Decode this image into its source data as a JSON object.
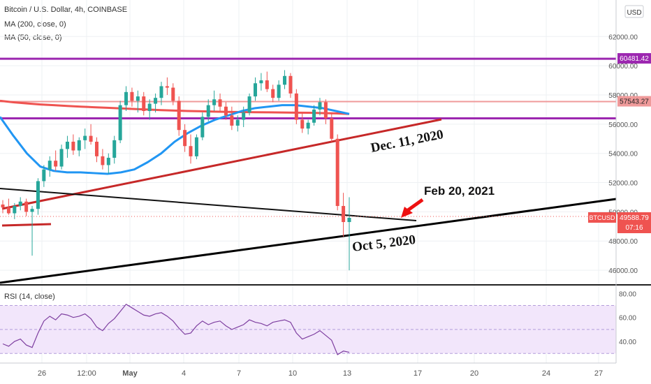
{
  "chart_data": {
    "type": "candlestick",
    "title": "Bitcoin / U.S. Dollar, 4h, COINBASE",
    "currency_label": "USD",
    "symbol": "BTCUSD",
    "last_price": "49588.79",
    "countdown": "07:16",
    "grid": true,
    "ylim": [
      45000,
      64500
    ],
    "y_ticks": [
      "46000.00",
      "48000.00",
      "50000.00",
      "52000.00",
      "54000.00",
      "56000.00",
      "58000.00",
      "60000.00",
      "62000.00"
    ],
    "price_labels": [
      {
        "text": "60481.42",
        "value": 60481.42,
        "color": "#9c27b0"
      },
      {
        "text": "57543.27",
        "value": 57543.27,
        "color": "#ef9a9a"
      },
      {
        "text": "49588.79",
        "value": 49588.79,
        "color": "#ef5350"
      }
    ],
    "x_ticks": [
      "26",
      "12:00",
      "May",
      "4",
      "7",
      "10",
      "13",
      "17",
      "20",
      "24",
      "27"
    ],
    "indicators": [
      {
        "label": "MA (200, close, 0)",
        "color": "#ef5350",
        "values": [
          57600,
          57500,
          57420,
          57350,
          57300,
          57250,
          57200,
          57160,
          57120,
          57080,
          57040,
          57000,
          56960,
          56930,
          56900,
          56880,
          56860,
          56840,
          56830,
          56820,
          56810,
          56800,
          56790,
          56780,
          56760,
          56740,
          56700
        ]
      },
      {
        "label": "MA (50, close, 0)",
        "color": "#2196f3",
        "values": [
          56500,
          55200,
          54000,
          53100,
          52800,
          52700,
          52700,
          52650,
          52600,
          52700,
          52900,
          53400,
          54000,
          54800,
          55400,
          55900,
          56300,
          56600,
          56900,
          57100,
          57200,
          57300,
          57300,
          57200,
          57100,
          56900,
          56700
        ]
      }
    ],
    "horizontal_levels": [
      {
        "value": 60481.42,
        "color": "#9c27b0"
      },
      {
        "value": 57543.27,
        "color": "#ef9a9a"
      },
      {
        "value": 56400,
        "color": "#9c27b0"
      }
    ],
    "annotations": [
      "Dec. 11, 2020",
      "Feb 20, 2021",
      "Oct 5, 2020"
    ],
    "candles": [
      [
        50500,
        50800,
        49900,
        50300
      ],
      [
        50300,
        50900,
        49800,
        49900
      ],
      [
        49900,
        50600,
        49500,
        50400
      ],
      [
        50400,
        51000,
        50100,
        50700
      ],
      [
        50700,
        50900,
        49700,
        50000
      ],
      [
        50000,
        50400,
        47000,
        50200
      ],
      [
        50200,
        52300,
        49800,
        52100
      ],
      [
        52100,
        53200,
        51700,
        52900
      ],
      [
        52900,
        53800,
        52400,
        53500
      ],
      [
        53500,
        54200,
        52800,
        53100
      ],
      [
        53100,
        54600,
        52900,
        54300
      ],
      [
        54300,
        55200,
        53700,
        54800
      ],
      [
        54800,
        55300,
        53900,
        54200
      ],
      [
        54200,
        55100,
        53800,
        54900
      ],
      [
        54900,
        55700,
        54300,
        55200
      ],
      [
        55200,
        56000,
        54600,
        54800
      ],
      [
        54800,
        55100,
        53400,
        53800
      ],
      [
        53800,
        54300,
        52900,
        53200
      ],
      [
        53200,
        54000,
        52600,
        53700
      ],
      [
        53700,
        55200,
        53300,
        54900
      ],
      [
        54900,
        57600,
        54700,
        57300
      ],
      [
        57300,
        58600,
        56900,
        58200
      ],
      [
        58200,
        58500,
        57200,
        57600
      ],
      [
        57600,
        58300,
        56800,
        57900
      ],
      [
        57900,
        58200,
        56600,
        56900
      ],
      [
        56900,
        57700,
        56300,
        57400
      ],
      [
        57400,
        58100,
        56800,
        57800
      ],
      [
        57800,
        58900,
        57300,
        58600
      ],
      [
        58600,
        59200,
        58000,
        58500
      ],
      [
        58500,
        58800,
        57300,
        57600
      ],
      [
        57600,
        57900,
        55200,
        55600
      ],
      [
        55600,
        56000,
        54100,
        54500
      ],
      [
        54500,
        55300,
        53300,
        53800
      ],
      [
        53800,
        55300,
        53600,
        55100
      ],
      [
        55100,
        56800,
        54900,
        56500
      ],
      [
        56500,
        57700,
        56200,
        57300
      ],
      [
        57300,
        58300,
        56900,
        57700
      ],
      [
        57700,
        58100,
        56900,
        57200
      ],
      [
        57200,
        57500,
        56300,
        56600
      ],
      [
        56600,
        57200,
        55600,
        55900
      ],
      [
        55900,
        56600,
        55500,
        56300
      ],
      [
        56300,
        57200,
        55800,
        56800
      ],
      [
        56800,
        58100,
        56600,
        57900
      ],
      [
        57900,
        59200,
        57600,
        58800
      ],
      [
        58800,
        59500,
        58300,
        59000
      ],
      [
        59000,
        59600,
        58200,
        58400
      ],
      [
        58400,
        58700,
        57500,
        57800
      ],
      [
        57800,
        59000,
        57600,
        58700
      ],
      [
        58700,
        59700,
        58400,
        59300
      ],
      [
        59300,
        59500,
        57800,
        58100
      ],
      [
        58100,
        58400,
        56000,
        56300
      ],
      [
        56300,
        56800,
        55400,
        55700
      ],
      [
        55700,
        56300,
        55300,
        56100
      ],
      [
        56100,
        57300,
        55900,
        57000
      ],
      [
        57000,
        57800,
        56600,
        57500
      ],
      [
        57500,
        57700,
        56000,
        56400
      ],
      [
        56400,
        56800,
        54800,
        55000
      ],
      [
        55000,
        55300,
        50100,
        50400
      ],
      [
        50400,
        51300,
        48300,
        49300
      ],
      [
        49300,
        51000,
        46000,
        49588.79
      ]
    ]
  },
  "rsi": {
    "label": "RSI (14, close)",
    "y_ticks": [
      "80.00",
      "60.00",
      "40.00"
    ],
    "ylim": [
      22,
      86
    ],
    "upper_band": 70,
    "lower_band": 30,
    "values": [
      38,
      36,
      40,
      42,
      37,
      35,
      47,
      57,
      61,
      58,
      63,
      62,
      60,
      61,
      63,
      59,
      52,
      49,
      55,
      59,
      65,
      71,
      68,
      65,
      62,
      61,
      63,
      64,
      61,
      57,
      51,
      46,
      47,
      53,
      57,
      54,
      56,
      57,
      53,
      50,
      52,
      54,
      58,
      56,
      55,
      53,
      56,
      57,
      58,
      56,
      47,
      42,
      44,
      46,
      49,
      45,
      41,
      29,
      32,
      31
    ]
  }
}
